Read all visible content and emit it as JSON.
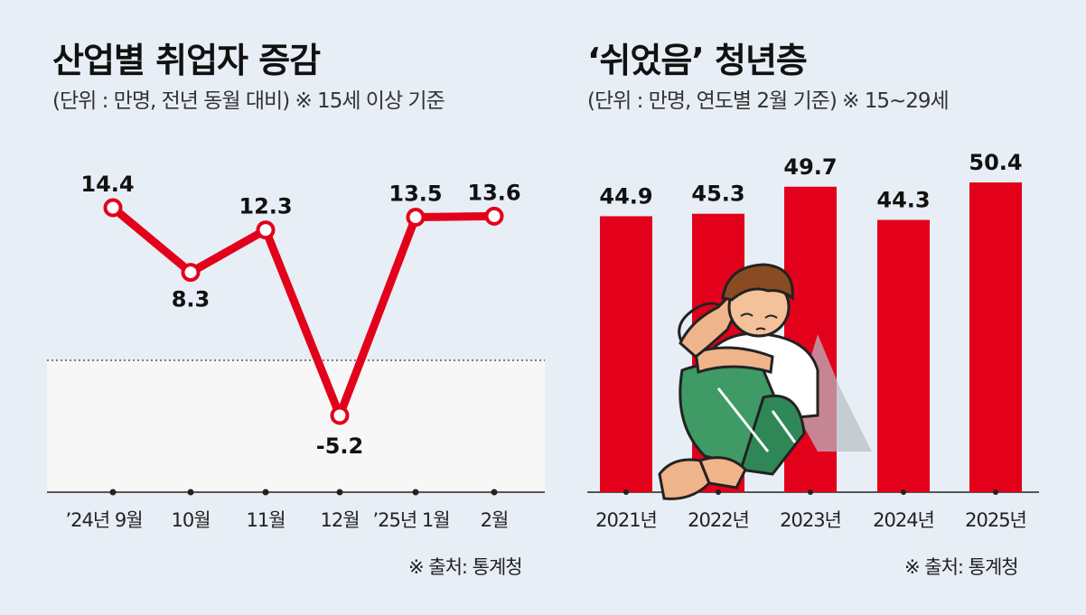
{
  "colors": {
    "background": "#e8eef5",
    "accent_red": "#e3001b",
    "negative_area": "#f7f7f7",
    "text": "#111111"
  },
  "left_panel": {
    "title": "산업별 취업자 증감",
    "subtitle": "(단위 : 만명, 전년 동월 대비) ※ 15세 이상 기준",
    "source": "※ 출처: 통계청"
  },
  "right_panel": {
    "title": "‘쉬었음’ 청년층",
    "subtitle": "(단위 : 만명, 연도별 2월 기준) ※ 15~29세",
    "source": "※ 출처: 통계청",
    "illustration": "sitting-young-man-illustration"
  },
  "chart_data": [
    {
      "type": "line",
      "title": "산업별 취업자 증감",
      "categories": [
        "’24년 9월",
        "10월",
        "11월",
        "12월",
        "’25년 1월",
        "2월"
      ],
      "values": [
        14.4,
        8.3,
        12.3,
        -5.2,
        13.5,
        13.6
      ],
      "data_labels": [
        "14.4",
        "8.3",
        "12.3",
        "-5.2",
        "13.5",
        "13.6"
      ],
      "ylim": [
        -10,
        16
      ],
      "zero_line": true,
      "grid": false,
      "color": "#e3001b"
    },
    {
      "type": "bar",
      "title": "‘쉬었음’ 청년층",
      "categories": [
        "2021년",
        "2022년",
        "2023년",
        "2024년",
        "2025년"
      ],
      "values": [
        44.9,
        45.3,
        49.7,
        44.3,
        50.4
      ],
      "data_labels": [
        "44.9",
        "45.3",
        "49.7",
        "44.3",
        "50.4"
      ],
      "ylim": [
        0,
        53
      ],
      "grid": false,
      "color": "#e3001b"
    }
  ]
}
